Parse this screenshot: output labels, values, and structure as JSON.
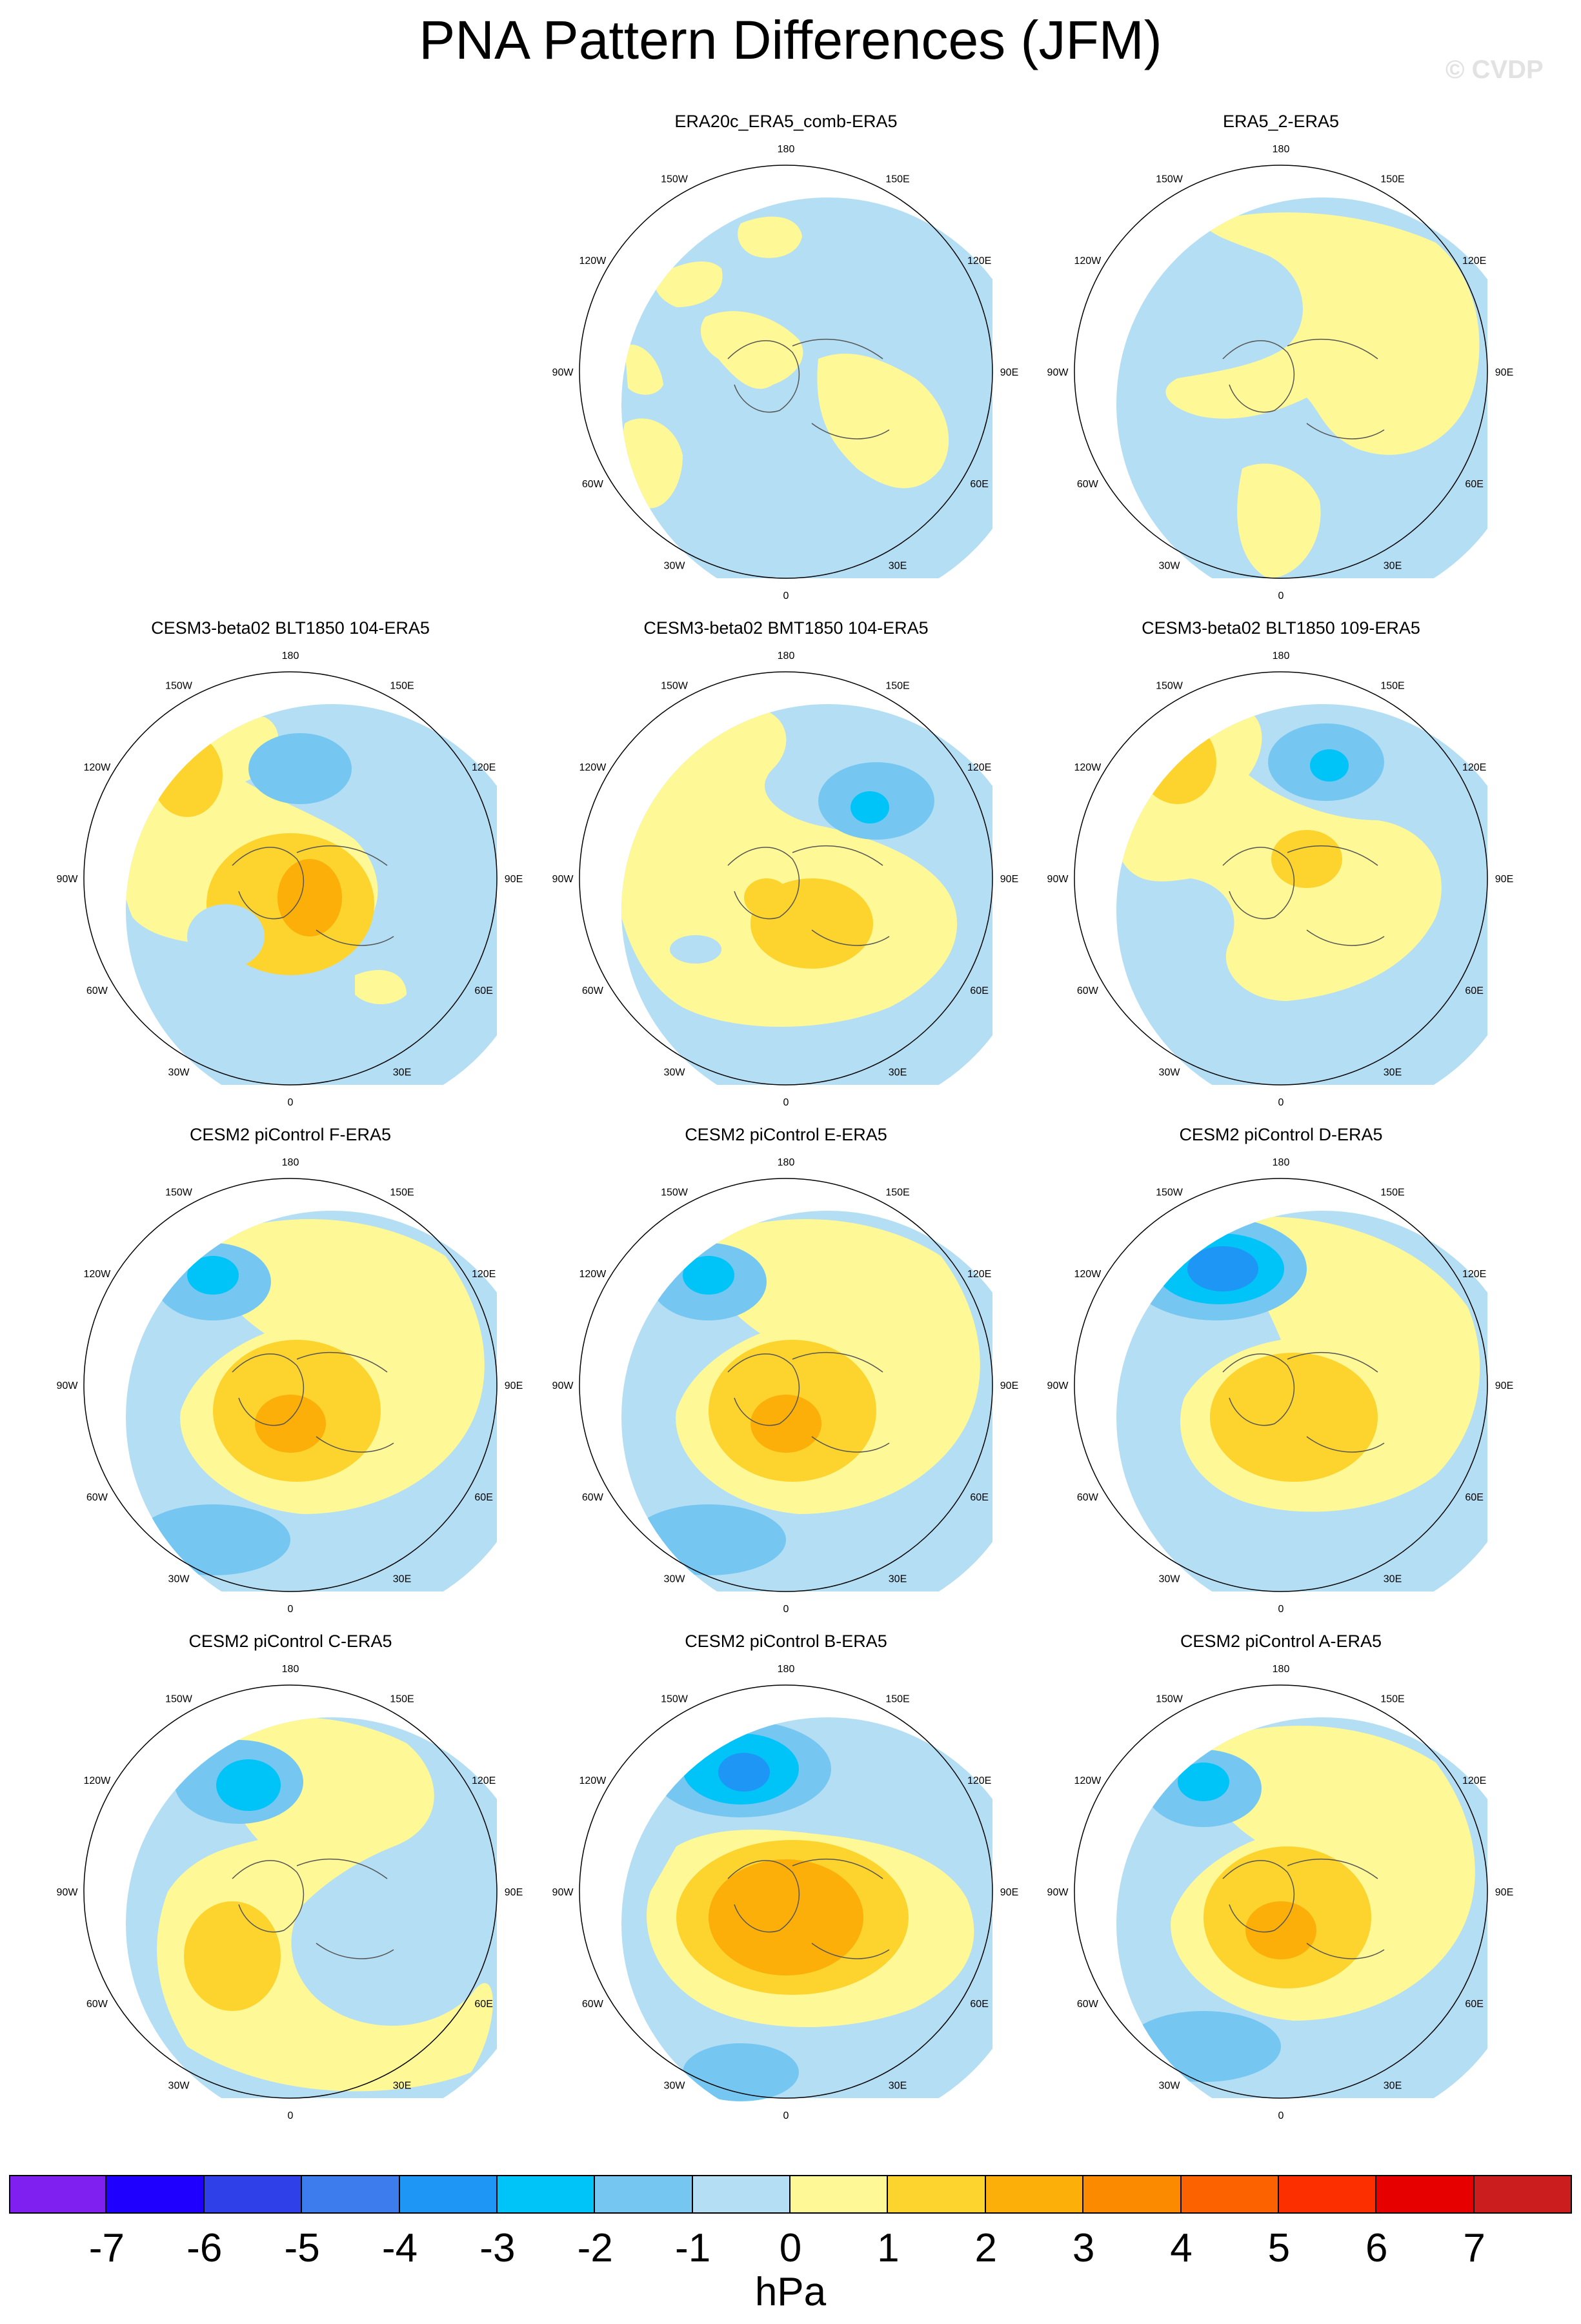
{
  "title": "PNA Pattern Differences (JFM)",
  "watermark": "© CVDP",
  "lon_labels": [
    "180",
    "150E",
    "120E",
    "90E",
    "60E",
    "30E",
    "0",
    "30W",
    "60W",
    "90W",
    "120W",
    "150W"
  ],
  "colors": {
    "n7": "#7f1ff0",
    "n6": "#1f00ff",
    "n5": "#3040e8",
    "n4": "#3c7ced",
    "n3": "#1e96f5",
    "n2": "#00c4f8",
    "n1": "#75c7f1",
    "n0": "#b4def3",
    "p0": "#fff896",
    "p1": "#fdd42e",
    "p2": "#fcaf08",
    "p3": "#fc8a00",
    "p4": "#fc6200",
    "p5": "#fc2f00",
    "p6": "#e60000",
    "p7": "#cb1d1d",
    "p8": "#fdb4b4",
    "coast": "#555555"
  },
  "panels": [
    {
      "title": "ERA20c_ERA5_comb-ERA5",
      "pattern": "mixed-a"
    },
    {
      "title": "ERA5_2-ERA5",
      "pattern": "mixed-b"
    },
    {
      "title": "CESM3-beta02 BLT1850 104-ERA5",
      "pattern": "warm-center"
    },
    {
      "title": "CESM3-beta02 BMT1850 104-ERA5",
      "pattern": "weak-low"
    },
    {
      "title": "CESM3-beta02 BLT1850 109-ERA5",
      "pattern": "dipole"
    },
    {
      "title": "CESM2 piControl F-ERA5",
      "pattern": "low-high"
    },
    {
      "title": "CESM2 piControl E-ERA5",
      "pattern": "low-high"
    },
    {
      "title": "CESM2 piControl D-ERA5",
      "pattern": "strong-low"
    },
    {
      "title": "CESM2 piControl C-ERA5",
      "pattern": "low-weak-high"
    },
    {
      "title": "CESM2 piControl B-ERA5",
      "pattern": "strong-low-high"
    },
    {
      "title": "CESM2 piControl A-ERA5",
      "pattern": "low-high"
    }
  ],
  "colorbar": {
    "ticks": [
      "-7",
      "-6",
      "-5",
      "-4",
      "-3",
      "-2",
      "-1",
      "0",
      "1",
      "2",
      "3",
      "4",
      "5",
      "6",
      "7"
    ],
    "unit": "hPa"
  }
}
